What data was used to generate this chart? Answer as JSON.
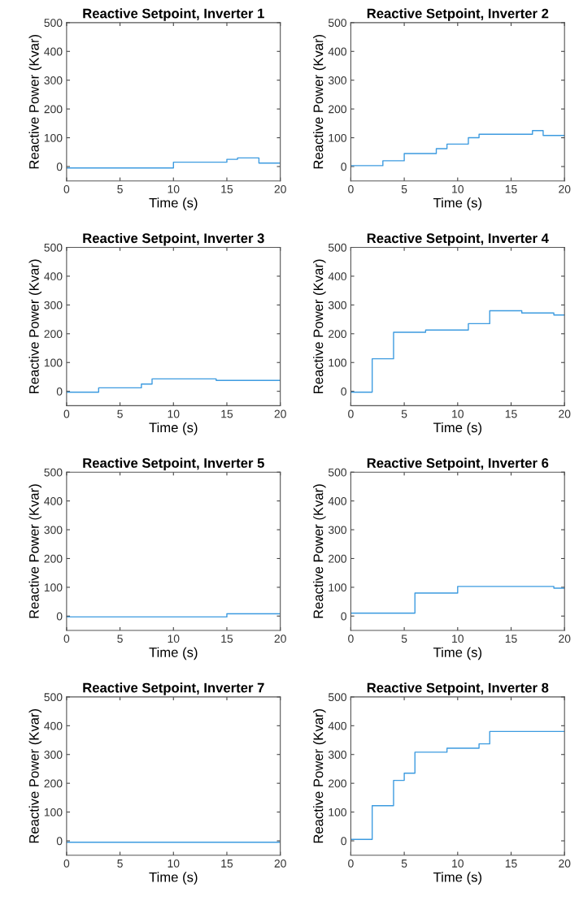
{
  "chart_data": [
    {
      "type": "step",
      "title": "Reactive Setpoint, Inverter 1",
      "xlabel": "Time (s)",
      "ylabel": "Reactive Power (Kvar)",
      "xlim": [
        0,
        20
      ],
      "ylim": [
        -50,
        500
      ],
      "xticks": [
        0,
        5,
        10,
        15,
        20
      ],
      "yticks": [
        0,
        100,
        200,
        300,
        400,
        500
      ],
      "grid": false,
      "legend": false,
      "series": [
        {
          "color": "#3d9be0",
          "x": [
            0,
            10,
            15,
            16,
            18,
            20
          ],
          "values": [
            -5,
            15,
            25,
            30,
            12,
            12
          ]
        }
      ]
    },
    {
      "type": "step",
      "title": "Reactive Setpoint, Inverter 2",
      "xlabel": "Time (s)",
      "ylabel": "Reactive Power (Kvar)",
      "xlim": [
        0,
        20
      ],
      "ylim": [
        -50,
        500
      ],
      "xticks": [
        0,
        5,
        10,
        15,
        20
      ],
      "yticks": [
        0,
        100,
        200,
        300,
        400,
        500
      ],
      "grid": false,
      "legend": false,
      "series": [
        {
          "color": "#3d9be0",
          "x": [
            0,
            3,
            5,
            8,
            9,
            11,
            12,
            17,
            18,
            20
          ],
          "values": [
            3,
            20,
            45,
            62,
            78,
            100,
            112,
            125,
            108,
            108
          ]
        }
      ]
    },
    {
      "type": "step",
      "title": "Reactive Setpoint, Inverter 3",
      "xlabel": "Time (s)",
      "ylabel": "Reactive Power (Kvar)",
      "xlim": [
        0,
        20
      ],
      "ylim": [
        -50,
        500
      ],
      "xticks": [
        0,
        5,
        10,
        15,
        20
      ],
      "yticks": [
        0,
        100,
        200,
        300,
        400,
        500
      ],
      "grid": false,
      "legend": false,
      "series": [
        {
          "color": "#3d9be0",
          "x": [
            0,
            3,
            7,
            8,
            14,
            20
          ],
          "values": [
            -3,
            12,
            25,
            43,
            38,
            38
          ]
        }
      ]
    },
    {
      "type": "step",
      "title": "Reactive Setpoint, Inverter 4",
      "xlabel": "Time (s)",
      "ylabel": "Reactive Power (Kvar)",
      "xlim": [
        0,
        20
      ],
      "ylim": [
        -50,
        500
      ],
      "xticks": [
        0,
        5,
        10,
        15,
        20
      ],
      "yticks": [
        0,
        100,
        200,
        300,
        400,
        500
      ],
      "grid": false,
      "legend": false,
      "series": [
        {
          "color": "#3d9be0",
          "x": [
            0,
            2,
            4,
            7,
            11,
            13,
            16,
            19,
            20
          ],
          "values": [
            -3,
            113,
            205,
            213,
            235,
            280,
            272,
            265,
            265
          ]
        }
      ]
    },
    {
      "type": "step",
      "title": "Reactive Setpoint, Inverter 5",
      "xlabel": "Time (s)",
      "ylabel": "Reactive Power (Kvar)",
      "xlim": [
        0,
        20
      ],
      "ylim": [
        -50,
        500
      ],
      "xticks": [
        0,
        5,
        10,
        15,
        20
      ],
      "yticks": [
        0,
        100,
        200,
        300,
        400,
        500
      ],
      "grid": false,
      "legend": false,
      "series": [
        {
          "color": "#3d9be0",
          "x": [
            0,
            15,
            20
          ],
          "values": [
            -3,
            8,
            8
          ]
        }
      ]
    },
    {
      "type": "step",
      "title": "Reactive Setpoint, Inverter 6",
      "xlabel": "Time (s)",
      "ylabel": "Reactive Power (Kvar)",
      "xlim": [
        0,
        20
      ],
      "ylim": [
        -50,
        500
      ],
      "xticks": [
        0,
        5,
        10,
        15,
        20
      ],
      "yticks": [
        0,
        100,
        200,
        300,
        400,
        500
      ],
      "grid": false,
      "legend": false,
      "series": [
        {
          "color": "#3d9be0",
          "x": [
            0,
            6,
            10,
            19,
            20
          ],
          "values": [
            10,
            80,
            103,
            97,
            97
          ]
        }
      ]
    },
    {
      "type": "step",
      "title": "Reactive Setpoint, Inverter 7",
      "xlabel": "Time (s)",
      "ylabel": "Reactive Power (Kvar)",
      "xlim": [
        0,
        20
      ],
      "ylim": [
        -50,
        500
      ],
      "xticks": [
        0,
        5,
        10,
        15,
        20
      ],
      "yticks": [
        0,
        100,
        200,
        300,
        400,
        500
      ],
      "grid": false,
      "legend": false,
      "series": [
        {
          "color": "#3d9be0",
          "x": [
            0,
            20
          ],
          "values": [
            -5,
            -5
          ]
        }
      ]
    },
    {
      "type": "step",
      "title": "Reactive Setpoint, Inverter 8",
      "xlabel": "Time (s)",
      "ylabel": "Reactive Power (Kvar)",
      "xlim": [
        0,
        20
      ],
      "ylim": [
        -50,
        500
      ],
      "xticks": [
        0,
        5,
        10,
        15,
        20
      ],
      "yticks": [
        0,
        100,
        200,
        300,
        400,
        500
      ],
      "grid": false,
      "legend": false,
      "series": [
        {
          "color": "#3d9be0",
          "x": [
            0,
            2,
            4,
            5,
            6,
            9,
            12,
            13,
            20
          ],
          "values": [
            5,
            122,
            210,
            235,
            308,
            322,
            337,
            380,
            380
          ]
        }
      ]
    }
  ]
}
